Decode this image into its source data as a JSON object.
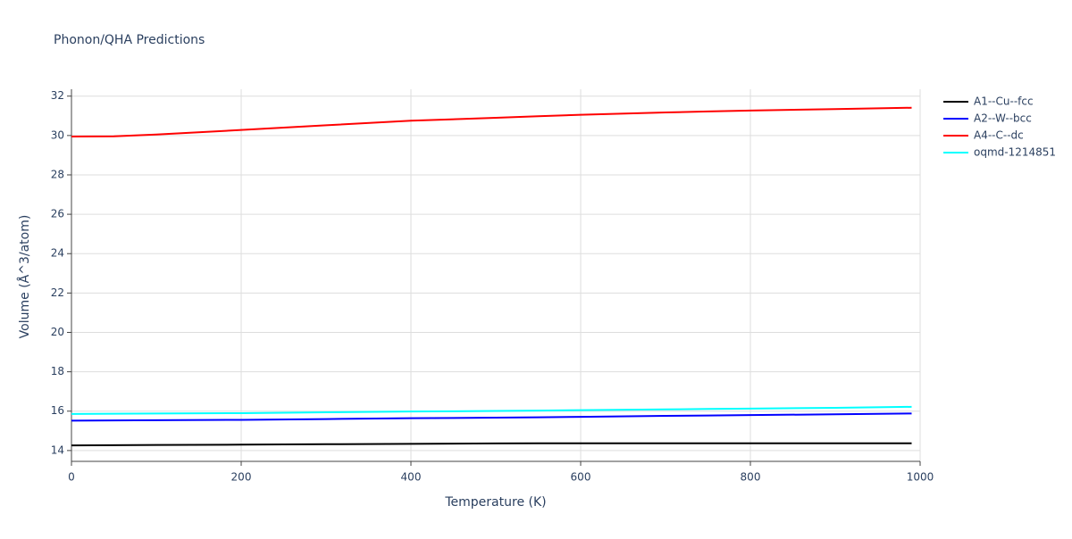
{
  "chart_data": {
    "type": "line",
    "title": "Phonon/QHA Predictions",
    "x_label": "Temperature (K)",
    "y_label": "Volume (Å^3/atom)",
    "x": [
      0,
      50,
      100,
      200,
      300,
      400,
      500,
      550,
      600,
      700,
      750,
      800,
      900,
      990
    ],
    "series": [
      {
        "name": "A1--Cu--fcc",
        "color": "#000000",
        "values": [
          14.26,
          14.27,
          14.28,
          14.3,
          14.32,
          14.34,
          14.36,
          14.37,
          14.37,
          14.37,
          14.37,
          14.37,
          14.37,
          14.37
        ]
      },
      {
        "name": "A2--W--bcc",
        "color": "#0000ff",
        "values": [
          15.52,
          15.53,
          15.54,
          15.56,
          15.6,
          15.64,
          15.67,
          15.69,
          15.71,
          15.76,
          15.78,
          15.8,
          15.84,
          15.88
        ]
      },
      {
        "name": "A4--C--dc",
        "color": "#ff0000",
        "values": [
          29.95,
          29.96,
          30.05,
          30.28,
          30.52,
          30.75,
          30.9,
          30.98,
          31.05,
          31.17,
          31.22,
          31.27,
          31.34,
          31.41
        ]
      },
      {
        "name": "oqmd-1214851",
        "color": "#00ffff",
        "values": [
          15.86,
          15.87,
          15.88,
          15.9,
          15.94,
          15.98,
          16.01,
          16.03,
          16.05,
          16.09,
          16.11,
          16.13,
          16.17,
          16.22
        ]
      }
    ],
    "xlim": [
      0,
      1000
    ],
    "xticks": [
      0,
      200,
      400,
      600,
      800,
      1000
    ],
    "ylim": [
      13.45,
      32.35
    ],
    "yticks": [
      14,
      16,
      18,
      20,
      22,
      24,
      26,
      28,
      30,
      32
    ],
    "grid": true,
    "legend_position": "right"
  }
}
